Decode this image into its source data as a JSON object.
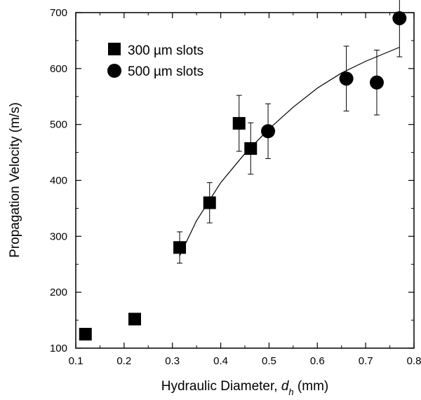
{
  "chart_data": {
    "type": "scatter",
    "title": "",
    "xlabel": {
      "prefix": "Hydraulic Diameter, ",
      "symbol": "d",
      "subscript": "h",
      "suffix": " (mm)"
    },
    "ylabel": "Propagation Velocity (m/s)",
    "xlim": [
      0.1,
      0.8
    ],
    "ylim": [
      100,
      700
    ],
    "xticks": [
      0.1,
      0.2,
      0.3,
      0.4,
      0.5,
      0.6,
      0.7,
      0.8
    ],
    "xtick_labels": [
      "0.1",
      "0.2",
      "0.3",
      "0.4",
      "0.5",
      "0.6",
      "0.7",
      "0.8"
    ],
    "yticks": [
      100,
      200,
      300,
      400,
      500,
      600,
      700
    ],
    "ytick_labels": [
      "100",
      "200",
      "300",
      "400",
      "500",
      "600",
      "700"
    ],
    "grid": false,
    "legend_position": "top-left",
    "series": [
      {
        "name": "300 µm slots",
        "marker": "square",
        "points": [
          {
            "x": 0.12,
            "y": 125
          },
          {
            "x": 0.222,
            "y": 152
          },
          {
            "x": 0.315,
            "y": 280,
            "err_low": 28,
            "err_high": 28
          },
          {
            "x": 0.377,
            "y": 360,
            "err_low": 36,
            "err_high": 36
          },
          {
            "x": 0.438,
            "y": 502,
            "err_low": 50,
            "err_high": 50
          },
          {
            "x": 0.462,
            "y": 457,
            "err_low": 46,
            "err_high": 46
          }
        ]
      },
      {
        "name": "500 µm slots",
        "marker": "circle",
        "points": [
          {
            "x": 0.498,
            "y": 488,
            "err_low": 49,
            "err_high": 49
          },
          {
            "x": 0.66,
            "y": 582,
            "err_low": 58,
            "err_high": 58
          },
          {
            "x": 0.723,
            "y": 575,
            "err_low": 58,
            "err_high": 58
          },
          {
            "x": 0.77,
            "y": 690,
            "err_low": 69,
            "err_high": 69
          }
        ]
      }
    ],
    "fit_curve": {
      "x": [
        0.315,
        0.35,
        0.4,
        0.45,
        0.5,
        0.55,
        0.6,
        0.65,
        0.7,
        0.77
      ],
      "y": [
        265,
        328,
        396,
        448,
        492,
        531,
        565,
        592,
        613,
        638
      ]
    }
  }
}
